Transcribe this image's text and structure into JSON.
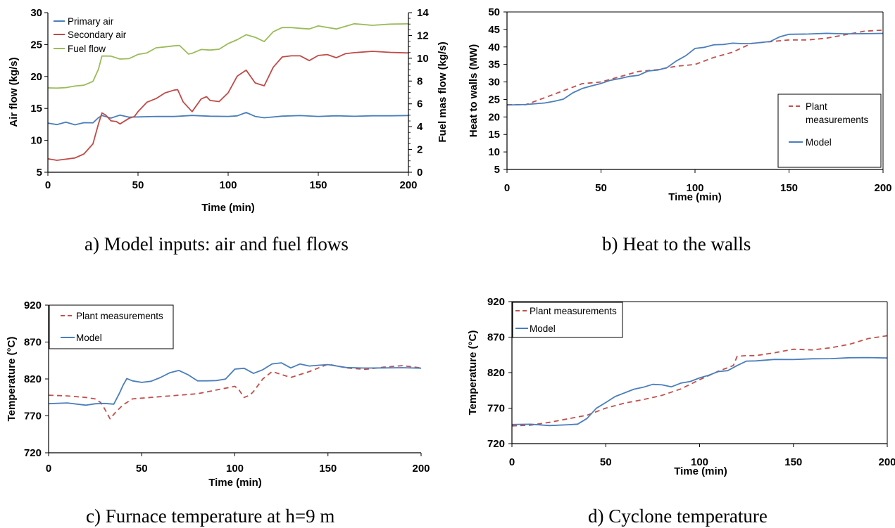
{
  "chart_data": [
    {
      "type": "line",
      "caption": "a)   Model inputs: air and fuel flows",
      "xlabel": "Time (min)",
      "ylabel": "Air flow (kg/s)",
      "ylabel_right": "Fuel mas flow (kg/s)",
      "xlim": [
        0,
        200
      ],
      "ylim": [
        5,
        30
      ],
      "ylim_right": [
        0,
        14
      ],
      "xticks": [
        "0",
        "50",
        "100",
        "150",
        "200"
      ],
      "yticks": [
        "5",
        "10",
        "15",
        "20",
        "25",
        "30"
      ],
      "yticks_right": [
        "0",
        "2",
        "4",
        "6",
        "8",
        "10",
        "12",
        "14"
      ],
      "grid": false,
      "legend_position": "top-left",
      "series": [
        {
          "name": "Primary air",
          "color": "#4a7ebb",
          "dash": "solid",
          "axis": "left",
          "x": [
            0,
            5,
            10,
            15,
            20,
            25,
            28,
            30,
            35,
            40,
            45,
            50,
            60,
            70,
            80,
            90,
            100,
            105,
            110,
            115,
            120,
            130,
            140,
            150,
            160,
            170,
            180,
            190,
            200
          ],
          "y": [
            12.7,
            12.5,
            12.8,
            12.5,
            12.7,
            12.8,
            13.5,
            13.9,
            13.5,
            13.9,
            13.7,
            13.6,
            13.8,
            13.7,
            13.9,
            13.8,
            13.7,
            13.9,
            14.3,
            13.8,
            13.5,
            13.8,
            13.9,
            13.7,
            13.9,
            13.7,
            13.9,
            13.8,
            13.9
          ]
        },
        {
          "name": "Secondary air",
          "color": "#be4b48",
          "dash": "solid",
          "axis": "left",
          "x": [
            0,
            5,
            10,
            15,
            20,
            25,
            28,
            30,
            32,
            35,
            38,
            40,
            45,
            48,
            50,
            55,
            60,
            65,
            70,
            72,
            75,
            80,
            85,
            88,
            90,
            95,
            100,
            105,
            110,
            115,
            120,
            125,
            130,
            135,
            140,
            145,
            150,
            155,
            160,
            165,
            170,
            180,
            190,
            200
          ],
          "y": [
            7.1,
            6.9,
            7.0,
            7.3,
            7.8,
            9.5,
            12.5,
            14.3,
            14.0,
            13.0,
            13.0,
            12.5,
            13.5,
            13.7,
            14.5,
            16.0,
            16.5,
            17.5,
            17.8,
            18.0,
            16.0,
            14.5,
            16.5,
            16.8,
            16.3,
            16.0,
            17.5,
            20.0,
            21.0,
            19.0,
            18.5,
            21.5,
            23.0,
            23.3,
            23.2,
            22.5,
            23.3,
            23.4,
            23.0,
            23.5,
            23.8,
            23.9,
            23.8,
            23.7
          ]
        },
        {
          "name": "Fuel flow",
          "color": "#9bbb59",
          "dash": "solid",
          "axis": "right",
          "x": [
            0,
            5,
            10,
            15,
            20,
            25,
            28,
            30,
            35,
            40,
            45,
            50,
            55,
            60,
            65,
            70,
            73,
            78,
            80,
            85,
            90,
            95,
            100,
            105,
            110,
            115,
            120,
            125,
            130,
            135,
            140,
            145,
            150,
            160,
            170,
            180,
            190,
            200
          ],
          "y": [
            7.4,
            7.4,
            7.4,
            7.6,
            7.6,
            8.0,
            9.0,
            10.2,
            10.2,
            9.9,
            10.0,
            10.3,
            10.5,
            10.9,
            11.0,
            11.1,
            11.1,
            10.4,
            10.4,
            10.8,
            10.7,
            10.8,
            11.3,
            11.6,
            12.1,
            11.8,
            11.5,
            12.3,
            12.7,
            12.7,
            12.6,
            12.6,
            12.8,
            12.6,
            13.0,
            12.9,
            13.0,
            13.0
          ]
        }
      ]
    },
    {
      "type": "line",
      "caption": "b)   Heat to the walls",
      "xlabel": "Time (min)",
      "ylabel": "Heat to walls (MW)",
      "xlim": [
        0,
        200
      ],
      "ylim": [
        5,
        50
      ],
      "xticks": [
        "0",
        "50",
        "100",
        "150",
        "200"
      ],
      "yticks": [
        "5",
        "10",
        "15",
        "20",
        "25",
        "30",
        "35",
        "40",
        "45",
        "50"
      ],
      "grid": false,
      "legend_position": "bottom-right",
      "series": [
        {
          "name": "Plant measurements",
          "color": "#c0504d",
          "dash": "dashed",
          "x": [
            0,
            10,
            20,
            30,
            40,
            50,
            60,
            70,
            80,
            90,
            100,
            110,
            120,
            130,
            140,
            150,
            160,
            170,
            180,
            190,
            200
          ],
          "y": [
            23.5,
            23.5,
            25.5,
            27.5,
            29.5,
            30.0,
            31.5,
            33.0,
            33.5,
            34.5,
            35.0,
            37.0,
            38.5,
            41.0,
            41.5,
            42.0,
            42.0,
            42.5,
            43.5,
            44.5,
            44.8
          ]
        },
        {
          "name": "Model",
          "color": "#4a7ebb",
          "dash": "solid",
          "x": [
            0,
            10,
            20,
            25,
            30,
            35,
            40,
            45,
            50,
            55,
            60,
            65,
            70,
            75,
            80,
            85,
            90,
            95,
            100,
            105,
            110,
            115,
            120,
            125,
            130,
            140,
            145,
            150,
            160,
            170,
            180,
            190,
            200
          ],
          "y": [
            23.5,
            23.5,
            24.0,
            24.5,
            25.0,
            27.0,
            28.0,
            29.0,
            29.5,
            30.5,
            31.0,
            31.5,
            32.0,
            33.0,
            33.5,
            34.0,
            36.0,
            37.5,
            39.5,
            40.0,
            40.5,
            40.8,
            41.0,
            41.0,
            41.0,
            41.5,
            43.0,
            43.5,
            43.8,
            43.8,
            43.8,
            43.8,
            43.8
          ]
        }
      ]
    },
    {
      "type": "line",
      "caption": "c)   Furnace temperature at h=9 m",
      "xlabel": "Time (min)",
      "ylabel": "Temperature (°C)",
      "xlim": [
        0,
        200
      ],
      "ylim": [
        720,
        920
      ],
      "xticks": [
        "0",
        "50",
        "100",
        "150",
        "200"
      ],
      "yticks": [
        "720",
        "770",
        "820",
        "870",
        "920"
      ],
      "grid": false,
      "legend_position": "top-left",
      "series": [
        {
          "name": "Plant measurements",
          "color": "#c0504d",
          "dash": "dashed",
          "x": [
            0,
            10,
            20,
            25,
            28,
            30,
            33,
            36,
            40,
            45,
            50,
            60,
            70,
            80,
            90,
            100,
            102,
            105,
            108,
            110,
            115,
            120,
            130,
            140,
            150,
            160,
            170,
            180,
            190,
            200
          ],
          "y": [
            798,
            797,
            795,
            793,
            788,
            780,
            766,
            775,
            785,
            793,
            794,
            796,
            798,
            800,
            805,
            810,
            806,
            795,
            798,
            803,
            820,
            830,
            822,
            830,
            840,
            835,
            833,
            836,
            838,
            835
          ]
        },
        {
          "name": "Model",
          "color": "#4a7ebb",
          "dash": "solid",
          "x": [
            0,
            10,
            20,
            25,
            30,
            35,
            38,
            40,
            42,
            45,
            50,
            55,
            60,
            65,
            70,
            75,
            80,
            85,
            90,
            95,
            100,
            105,
            110,
            115,
            120,
            125,
            130,
            135,
            140,
            145,
            150,
            160,
            170,
            180,
            190,
            200
          ],
          "y": [
            787,
            787,
            785,
            786,
            787,
            786,
            800,
            812,
            820,
            818,
            815,
            817,
            822,
            828,
            832,
            825,
            818,
            817,
            818,
            820,
            833,
            835,
            827,
            833,
            840,
            842,
            835,
            840,
            838,
            838,
            840,
            835,
            835,
            835,
            835,
            835
          ]
        }
      ]
    },
    {
      "type": "line",
      "caption": "d)   Cyclone temperature",
      "xlabel": "Time (min)",
      "ylabel": "Temperature (°C)",
      "xlim": [
        0,
        200
      ],
      "ylim": [
        720,
        920
      ],
      "xticks": [
        "0",
        "50",
        "100",
        "150",
        "200"
      ],
      "yticks": [
        "720",
        "770",
        "820",
        "870",
        "920"
      ],
      "grid": false,
      "legend_position": "top-left",
      "series": [
        {
          "name": "Plant measurements",
          "color": "#c0504d",
          "dash": "dashed",
          "x": [
            0,
            10,
            20,
            30,
            40,
            50,
            60,
            70,
            80,
            90,
            100,
            110,
            118,
            120,
            125,
            130,
            140,
            150,
            160,
            170,
            180,
            190,
            200
          ],
          "y": [
            745,
            746,
            750,
            755,
            760,
            770,
            777,
            782,
            788,
            797,
            810,
            822,
            830,
            843,
            844,
            844,
            848,
            853,
            852,
            855,
            860,
            868,
            872
          ]
        },
        {
          "name": "Model",
          "color": "#4a7ebb",
          "dash": "solid",
          "x": [
            0,
            10,
            20,
            30,
            35,
            40,
            45,
            50,
            55,
            60,
            65,
            70,
            75,
            80,
            85,
            90,
            95,
            100,
            105,
            110,
            115,
            120,
            125,
            130,
            140,
            150,
            160,
            170,
            180,
            190,
            200
          ],
          "y": [
            747,
            747,
            746,
            746,
            748,
            755,
            770,
            778,
            786,
            792,
            796,
            800,
            803,
            803,
            800,
            805,
            808,
            812,
            817,
            821,
            823,
            830,
            836,
            837,
            838,
            839,
            839,
            840,
            841,
            841,
            841
          ]
        }
      ]
    }
  ]
}
